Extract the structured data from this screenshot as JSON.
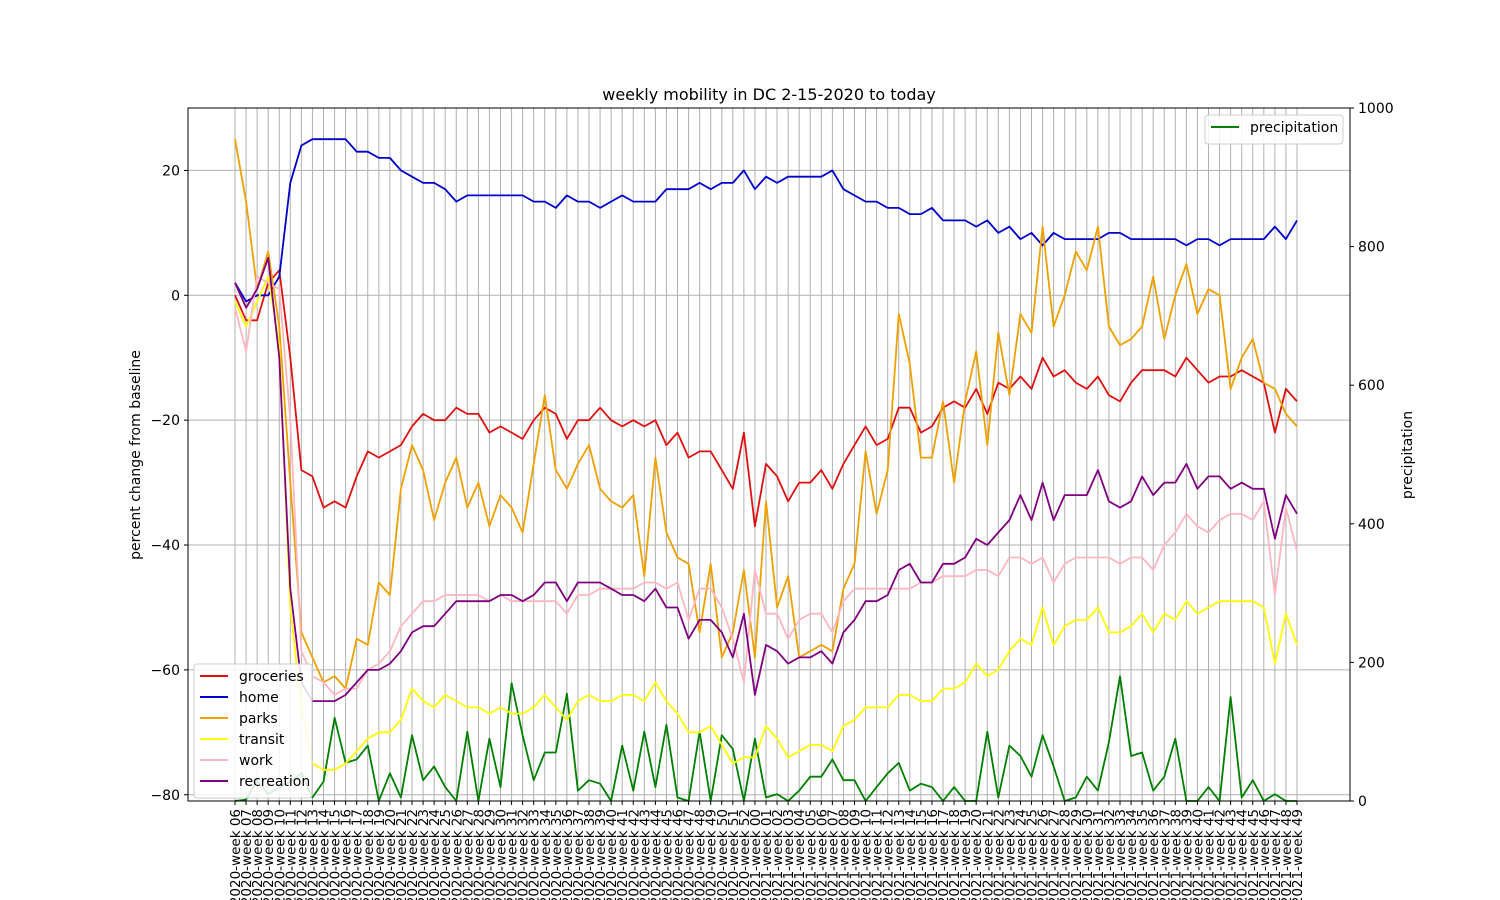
{
  "chart_data": {
    "type": "line",
    "title": "weekly mobility in DC 2-15-2020 to today",
    "ylabel": "percent change from baseline",
    "y2label": "precipitation",
    "ylim": [
      -81,
      30
    ],
    "y2lim": [
      0,
      1000
    ],
    "yticks": [
      -80,
      -60,
      -40,
      -20,
      0,
      20
    ],
    "y2ticks": [
      0,
      200,
      400,
      600,
      800,
      1000
    ],
    "grid": true,
    "legend_left_placement": "lower-left",
    "legend_right_placement": "upper-right",
    "categories": [
      "2020-week 06",
      "2020-week 07",
      "2020-week 08",
      "2020-week 09",
      "2020-week 10",
      "2020-week 11",
      "2020-week 12",
      "2020-week 13",
      "2020-week 14",
      "2020-week 15",
      "2020-week 16",
      "2020-week 17",
      "2020-week 18",
      "2020-week 19",
      "2020-week 20",
      "2020-week 21",
      "2020-week 22",
      "2020-week 23",
      "2020-week 24",
      "2020-week 25",
      "2020-week 26",
      "2020-week 27",
      "2020-week 28",
      "2020-week 29",
      "2020-week 30",
      "2020-week 31",
      "2020-week 32",
      "2020-week 33",
      "2020-week 34",
      "2020-week 35",
      "2020-week 36",
      "2020-week 37",
      "2020-week 38",
      "2020-week 39",
      "2020-week 40",
      "2020-week 41",
      "2020-week 42",
      "2020-week 43",
      "2020-week 44",
      "2020-week 45",
      "2020-week 46",
      "2020-week 47",
      "2020-week 48",
      "2020-week 49",
      "2020-week 50",
      "2020-week 51",
      "2020-week 52",
      "2021-week 00",
      "2021-week 01",
      "2021-week 02",
      "2021-week 03",
      "2021-week 04",
      "2021-week 05",
      "2021-week 06",
      "2021-week 07",
      "2021-week 08",
      "2021-week 09",
      "2021-week 10",
      "2021-week 11",
      "2021-week 12",
      "2021-week 13",
      "2021-week 14",
      "2021-week 15",
      "2021-week 16",
      "2021-week 17",
      "2021-week 18",
      "2021-week 19",
      "2021-week 20",
      "2021-week 21",
      "2021-week 22",
      "2021-week 23",
      "2021-week 24",
      "2021-week 25",
      "2021-week 26",
      "2021-week 27",
      "2021-week 28",
      "2021-week 29",
      "2021-week 30",
      "2021-week 31",
      "2021-week 32",
      "2021-week 33",
      "2021-week 34",
      "2021-week 35",
      "2021-week 36",
      "2021-week 37",
      "2021-week 38",
      "2021-week 39",
      "2021-week 40",
      "2021-week 41",
      "2021-week 42",
      "2021-week 43",
      "2021-week 44",
      "2021-week 45",
      "2021-week 46",
      "2021-week 47",
      "2021-week 48",
      "2021-week 49"
    ],
    "series": [
      {
        "name": "groceries",
        "color": "#e01010",
        "axis": "left",
        "values": [
          0,
          -4,
          -4,
          2,
          4,
          -10,
          -28,
          -29,
          -34,
          -33,
          -34,
          -29,
          -25,
          -26,
          -25,
          -24,
          -21,
          -19,
          -20,
          -20,
          -18,
          -19,
          -19,
          -22,
          -21,
          -22,
          -23,
          -20,
          -18,
          -19,
          -23,
          -20,
          -20,
          -18,
          -20,
          -21,
          -20,
          -21,
          -20,
          -24,
          -22,
          -26,
          -25,
          -25,
          -28,
          -31,
          -22,
          -37,
          -27,
          -29,
          -33,
          -30,
          -30,
          -28,
          -31,
          -27,
          -24,
          -21,
          -24,
          -23,
          -18,
          -18,
          -22,
          -21,
          -18,
          -17,
          -18,
          -15,
          -19,
          -14,
          -15,
          -13,
          -15,
          -10,
          -13,
          -12,
          -14,
          -15,
          -13,
          -16,
          -17,
          -14,
          -12,
          -12,
          -12,
          -13,
          -10,
          -12,
          -14,
          -13,
          -13,
          -12,
          -13,
          -14,
          -22,
          -15,
          -17
        ]
      },
      {
        "name": "home",
        "color": "#0000cc",
        "axis": "left",
        "values": [
          2,
          -1,
          0,
          0,
          3,
          18,
          24,
          25,
          25,
          25,
          25,
          23,
          23,
          22,
          22,
          20,
          19,
          18,
          18,
          17,
          15,
          16,
          16,
          16,
          16,
          16,
          16,
          15,
          15,
          14,
          16,
          15,
          15,
          14,
          15,
          16,
          15,
          15,
          15,
          17,
          17,
          17,
          18,
          17,
          18,
          18,
          20,
          17,
          19,
          18,
          19,
          19,
          19,
          19,
          20,
          17,
          16,
          15,
          15,
          14,
          14,
          13,
          13,
          14,
          12,
          12,
          12,
          11,
          12,
          10,
          11,
          9,
          10,
          8,
          10,
          9,
          9,
          9,
          9,
          10,
          10,
          9,
          9,
          9,
          9,
          9,
          8,
          9,
          9,
          8,
          9,
          9,
          9,
          9,
          11,
          9,
          12
        ]
      },
      {
        "name": "parks",
        "color": "#f0a000",
        "axis": "left",
        "values": [
          25,
          15,
          1,
          7,
          -5,
          -30,
          -54,
          -58,
          -62,
          -61,
          -63,
          -55,
          -56,
          -46,
          -48,
          -31,
          -24,
          -28,
          -36,
          -30,
          -26,
          -34,
          -30,
          -37,
          -32,
          -34,
          -38,
          -27,
          -16,
          -28,
          -31,
          -27,
          -24,
          -31,
          -33,
          -34,
          -32,
          -45,
          -26,
          -38,
          -42,
          -43,
          -54,
          -43,
          -58,
          -54,
          -44,
          -58,
          -33,
          -50,
          -45,
          -58,
          -57,
          -56,
          -57,
          -47,
          -43,
          -25,
          -35,
          -28,
          -3,
          -11,
          -26,
          -26,
          -17,
          -30,
          -17,
          -9,
          -24,
          -6,
          -16,
          -3,
          -6,
          11,
          -5,
          0,
          7,
          4,
          11,
          -5,
          -8,
          -7,
          -5,
          3,
          -7,
          0,
          5,
          -3,
          1,
          0,
          -15,
          -10,
          -7,
          -14,
          -15,
          -19,
          -21
        ]
      },
      {
        "name": "transit",
        "color": "#ffff00",
        "axis": "left",
        "values": [
          -1,
          -5,
          -1,
          3,
          -8,
          -50,
          -66,
          -75,
          -76,
          -76,
          -75,
          -73,
          -71,
          -70,
          -70,
          -68,
          -63,
          -65,
          -66,
          -64,
          -65,
          -66,
          -66,
          -67,
          -66,
          -67,
          -67,
          -66,
          -64,
          -66,
          -68,
          -65,
          -64,
          -65,
          -65,
          -64,
          -64,
          -65,
          -62,
          -65,
          -67,
          -70,
          -70,
          -69,
          -72,
          -75,
          -74,
          -74,
          -69,
          -71,
          -74,
          -73,
          -72,
          -72,
          -73,
          -69,
          -68,
          -66,
          -66,
          -66,
          -64,
          -64,
          -65,
          -65,
          -63,
          -63,
          -62,
          -59,
          -61,
          -60,
          -57,
          -55,
          -56,
          -50,
          -56,
          -53,
          -52,
          -52,
          -50,
          -54,
          -54,
          -53,
          -51,
          -54,
          -51,
          -52,
          -49,
          -51,
          -50,
          -49,
          -49,
          -49,
          -49,
          -50,
          -59,
          -51,
          -56
        ]
      },
      {
        "name": "work",
        "color": "#ffb6c1",
        "axis": "left",
        "values": [
          -2,
          -9,
          3,
          2,
          1,
          -20,
          -57,
          -61,
          -62,
          -64,
          -63,
          -63,
          -60,
          -59,
          -57,
          -53,
          -51,
          -49,
          -49,
          -48,
          -48,
          -48,
          -48,
          -49,
          -48,
          -49,
          -49,
          -49,
          -49,
          -49,
          -51,
          -48,
          -48,
          -47,
          -47,
          -47,
          -47,
          -46,
          -46,
          -47,
          -46,
          -52,
          -47,
          -47,
          -50,
          -55,
          -62,
          -44,
          -51,
          -51,
          -55,
          -52,
          -51,
          -51,
          -54,
          -49,
          -47,
          -47,
          -47,
          -47,
          -47,
          -47,
          -46,
          -46,
          -45,
          -45,
          -45,
          -44,
          -44,
          -45,
          -42,
          -42,
          -43,
          -42,
          -46,
          -43,
          -42,
          -42,
          -42,
          -42,
          -43,
          -42,
          -42,
          -44,
          -40,
          -38,
          -35,
          -37,
          -38,
          -36,
          -35,
          -35,
          -36,
          -33,
          -48,
          -34,
          -41
        ]
      },
      {
        "name": "recreation",
        "color": "#800080",
        "axis": "left",
        "values": [
          2,
          -2,
          1,
          6,
          -10,
          -47,
          -62,
          -65,
          -65,
          -65,
          -64,
          -62,
          -60,
          -60,
          -59,
          -57,
          -54,
          -53,
          -53,
          -51,
          -49,
          -49,
          -49,
          -49,
          -48,
          -48,
          -49,
          -48,
          -46,
          -46,
          -49,
          -46,
          -46,
          -46,
          -47,
          -48,
          -48,
          -49,
          -47,
          -50,
          -50,
          -55,
          -52,
          -52,
          -54,
          -58,
          -51,
          -64,
          -56,
          -57,
          -59,
          -58,
          -58,
          -57,
          -59,
          -54,
          -52,
          -49,
          -49,
          -48,
          -44,
          -43,
          -46,
          -46,
          -43,
          -43,
          -42,
          -39,
          -40,
          -38,
          -36,
          -32,
          -36,
          -30,
          -36,
          -32,
          -32,
          -32,
          -28,
          -33,
          -34,
          -33,
          -29,
          -32,
          -30,
          -30,
          -27,
          -31,
          -29,
          -29,
          -31,
          -30,
          -31,
          -31,
          -39,
          -32,
          -35
        ]
      },
      {
        "name": "precipitation",
        "color": "#008000",
        "axis": "right",
        "values": [
          0,
          2,
          30,
          10,
          20,
          28,
          40,
          5,
          28,
          120,
          55,
          60,
          80,
          0,
          40,
          5,
          95,
          30,
          50,
          20,
          0,
          100,
          0,
          90,
          20,
          170,
          95,
          30,
          70,
          70,
          155,
          15,
          30,
          25,
          0,
          80,
          15,
          100,
          20,
          110,
          5,
          0,
          100,
          0,
          95,
          75,
          0,
          90,
          5,
          10,
          0,
          15,
          35,
          35,
          60,
          30,
          30,
          0,
          20,
          40,
          55,
          15,
          25,
          20,
          0,
          20,
          0,
          0,
          100,
          5,
          80,
          65,
          35,
          95,
          50,
          0,
          5,
          35,
          15,
          85,
          180,
          65,
          70,
          15,
          35,
          90,
          0,
          0,
          20,
          0,
          150,
          5,
          30,
          0,
          10,
          0,
          0
        ]
      }
    ]
  }
}
